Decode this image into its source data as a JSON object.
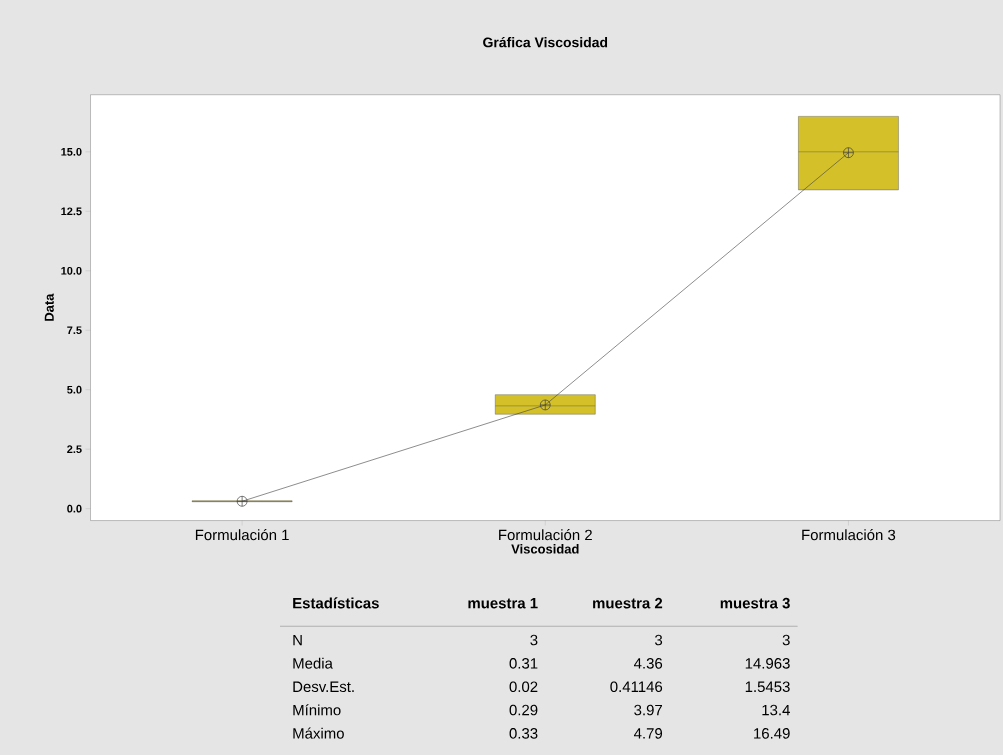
{
  "chart_data": [
    {
      "type": "box",
      "title": "Gráfica  Viscosidad",
      "xlabel": "Viscosidad",
      "ylabel": "Data",
      "categories": [
        "Formulación 1",
        "Formulación 2",
        "Formulación 3"
      ],
      "ylim": [
        -0.5,
        17.4
      ],
      "yticks": [
        {
          "value": 0,
          "label": "0.0"
        },
        {
          "value": 2.5,
          "label": "2.5"
        },
        {
          "value": 5,
          "label": "5.0"
        },
        {
          "value": 7.5,
          "label": "7.5"
        },
        {
          "value": 10,
          "label": "10.0"
        },
        {
          "value": 12.5,
          "label": "12.5"
        },
        {
          "value": 15,
          "label": "15.0"
        }
      ],
      "series": [
        {
          "type": "box",
          "color": "#d4c12a",
          "boxes": [
            {
              "low": 0.29,
              "q1": 0.29,
              "median": 0.31,
              "q3": 0.33,
              "high": 0.33,
              "mean": 0.31
            },
            {
              "low": 3.97,
              "q1": 3.97,
              "median": 4.32,
              "q3": 4.79,
              "high": 4.79,
              "mean": 4.36
            },
            {
              "low": 13.4,
              "q1": 13.4,
              "median": 15.0,
              "q3": 16.49,
              "high": 16.49,
              "mean": 14.963
            }
          ]
        },
        {
          "type": "line",
          "color": "#404040",
          "values": [
            0.31,
            4.36,
            14.963
          ]
        }
      ]
    },
    {
      "type": "other",
      "title": "Estadísticas",
      "categories": [
        "muestra 1",
        "muestra 2",
        "muestra 3"
      ],
      "y_categories": [
        "N",
        "Media",
        "Desv.Est.",
        "Mínimo",
        "Máximo"
      ],
      "cell_labels": [
        [
          "3",
          "3",
          "3"
        ],
        [
          "0.31",
          "4.36",
          "14.963"
        ],
        [
          "0.02",
          "0.41146",
          "1.5453"
        ],
        [
          "0.29",
          "3.97",
          "13.4"
        ],
        [
          "0.33",
          "4.79",
          "16.49"
        ]
      ]
    }
  ]
}
